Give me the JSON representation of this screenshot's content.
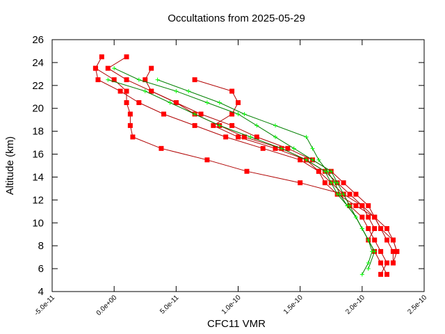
{
  "chart_data": {
    "type": "line",
    "title": "Occultations from 2025-05-29",
    "xlabel": "CFC11 VMR",
    "ylabel": "Altitude (km)",
    "xlim": [
      -5e-11,
      2.5e-10
    ],
    "ylim": [
      4,
      26
    ],
    "x_ticks": [
      "-5.0e-11",
      "0.0e+00",
      "5.0e-11",
      "1.0e-10",
      "1.5e-10",
      "2.0e-10",
      "2.5e-10"
    ],
    "y_ticks": [
      "4",
      "6",
      "8",
      "10",
      "12",
      "14",
      "16",
      "18",
      "20",
      "22",
      "24",
      "26"
    ],
    "grid": false,
    "legend": "none",
    "series": [
      {
        "color": "#ff0000",
        "line_color": "#b00000",
        "marker": "square",
        "values": [
          [
            -1e-11,
            24.5
          ],
          [
            -1.5e-11,
            23.5
          ],
          [
            -1.3e-11,
            22.5
          ],
          [
            5e-12,
            21.5
          ],
          [
            2e-11,
            20.5
          ],
          [
            4e-11,
            19.5
          ],
          [
            6.5e-11,
            18.5
          ],
          [
            9e-11,
            17.5
          ],
          [
            1.2e-10,
            16.5
          ],
          [
            1.5e-10,
            15.5
          ],
          [
            1.65e-10,
            14.5
          ],
          [
            1.75e-10,
            13.5
          ],
          [
            1.85e-10,
            12.5
          ],
          [
            1.9e-10,
            11.5
          ],
          [
            2e-10,
            10.5
          ],
          [
            2.05e-10,
            9.5
          ],
          [
            2.1e-10,
            8.5
          ],
          [
            2.15e-10,
            7.5
          ],
          [
            2.2e-10,
            6.5
          ],
          [
            2.15e-10,
            5.5
          ]
        ]
      },
      {
        "color": "#ff0000",
        "line_color": "#b00000",
        "marker": "square",
        "values": [
          [
            1e-11,
            24.5
          ],
          [
            -5e-12,
            23.5
          ],
          [
            1e-11,
            22.5
          ],
          [
            3e-11,
            21.5
          ],
          [
            5e-11,
            20.5
          ],
          [
            7e-11,
            19.5
          ],
          [
            9.5e-11,
            18.5
          ],
          [
            1.15e-10,
            17.5
          ],
          [
            1.4e-10,
            16.5
          ],
          [
            1.6e-10,
            15.5
          ],
          [
            1.75e-10,
            14.5
          ],
          [
            1.85e-10,
            13.5
          ],
          [
            1.95e-10,
            12.5
          ],
          [
            2.05e-10,
            11.5
          ],
          [
            2.1e-10,
            10.5
          ],
          [
            2.15e-10,
            9.5
          ],
          [
            2.2e-10,
            8.5
          ],
          [
            2.25e-10,
            7.5
          ],
          [
            2.25e-10,
            6.5
          ]
        ]
      },
      {
        "color": "#ff0000",
        "line_color": "#b00000",
        "marker": "square",
        "values": [
          [
            6.5e-11,
            22.5
          ],
          [
            9.5e-11,
            21.5
          ],
          [
            1e-10,
            20.5
          ],
          [
            9.5e-11,
            19.5
          ],
          [
            8e-11,
            18.5
          ],
          [
            1e-10,
            17.5
          ],
          [
            1.3e-10,
            16.5
          ],
          [
            1.55e-10,
            15.5
          ],
          [
            1.7e-10,
            14.5
          ],
          [
            1.8e-10,
            13.5
          ],
          [
            1.9e-10,
            12.5
          ],
          [
            2e-10,
            11.5
          ],
          [
            2.05e-10,
            10.5
          ],
          [
            2.1e-10,
            9.5
          ],
          [
            2.05e-10,
            8.5
          ],
          [
            2.1e-10,
            7.5
          ],
          [
            2.15e-10,
            6.5
          ],
          [
            2.2e-10,
            5.5
          ]
        ]
      },
      {
        "color": "#ff0000",
        "line_color": "#b00000",
        "marker": "square",
        "values": [
          [
            -1.5e-11,
            23.5
          ],
          [
            0,
            22.5
          ],
          [
            1e-11,
            21.5
          ],
          [
            1e-11,
            20.5
          ],
          [
            1.3e-11,
            19.5
          ],
          [
            1.3e-11,
            18.5
          ],
          [
            1.5e-11,
            17.5
          ],
          [
            3.8e-11,
            16.5
          ],
          [
            7.5e-11,
            15.5
          ],
          [
            1.07e-10,
            14.5
          ],
          [
            1.5e-10,
            13.5
          ],
          [
            1.85e-10,
            12.5
          ],
          [
            2e-10,
            11.5
          ],
          [
            2.1e-10,
            10.5
          ],
          [
            2.2e-10,
            9.5
          ],
          [
            2.25e-10,
            8.5
          ],
          [
            2.28e-10,
            7.5
          ],
          [
            2.25e-10,
            6.5
          ]
        ]
      },
      {
        "color": "#ff0000",
        "line_color": "#b00000",
        "marker": "square",
        "values": [
          [
            3e-11,
            23.5
          ],
          [
            2.5e-11,
            22.5
          ],
          [
            3e-11,
            21.5
          ],
          [
            5e-11,
            20.5
          ],
          [
            6.5e-11,
            19.5
          ],
          [
            8.5e-11,
            18.5
          ],
          [
            1.05e-10,
            17.5
          ],
          [
            1.35e-10,
            16.5
          ],
          [
            1.55e-10,
            15.5
          ],
          [
            1.65e-10,
            14.5
          ],
          [
            1.7e-10,
            13.5
          ],
          [
            1.8e-10,
            12.5
          ],
          [
            1.95e-10,
            11.5
          ],
          [
            2.1e-10,
            10.5
          ],
          [
            2.15e-10,
            9.5
          ],
          [
            2.25e-10,
            8.5
          ],
          [
            2.28e-10,
            7.5
          ]
        ]
      },
      {
        "color": "#00ff00",
        "line_color": "#008000",
        "marker": "plus",
        "values": [
          [
            0,
            23.5
          ],
          [
            2e-11,
            22.5
          ],
          [
            5e-11,
            21.5
          ],
          [
            7.5e-11,
            20.5
          ],
          [
            1e-10,
            19.5
          ],
          [
            1.15e-10,
            18.5
          ],
          [
            1.3e-10,
            17.5
          ],
          [
            1.45e-10,
            16.5
          ],
          [
            1.6e-10,
            15.5
          ],
          [
            1.75e-10,
            14.5
          ],
          [
            1.8e-10,
            13.5
          ],
          [
            1.85e-10,
            12.5
          ],
          [
            1.9e-10,
            11.5
          ],
          [
            1.95e-10,
            10.5
          ],
          [
            2e-10,
            9.5
          ],
          [
            2.05e-10,
            8.5
          ],
          [
            2.08e-10,
            7.5
          ],
          [
            2.05e-10,
            6.5
          ],
          [
            2e-10,
            5.5
          ]
        ]
      },
      {
        "color": "#00ff00",
        "line_color": "#008000",
        "marker": "plus",
        "values": [
          [
            -5e-12,
            22.5
          ],
          [
            2.5e-11,
            21.5
          ],
          [
            4.5e-11,
            20.5
          ],
          [
            6.5e-11,
            19.5
          ],
          [
            8.5e-11,
            18.5
          ],
          [
            1.1e-10,
            17.5
          ],
          [
            1.35e-10,
            16.5
          ],
          [
            1.55e-10,
            15.5
          ],
          [
            1.7e-10,
            14.5
          ],
          [
            1.75e-10,
            13.5
          ],
          [
            1.8e-10,
            12.5
          ],
          [
            1.88e-10,
            11.5
          ],
          [
            1.95e-10,
            10.5
          ],
          [
            2e-10,
            9.5
          ],
          [
            2.05e-10,
            8.5
          ],
          [
            2.1e-10,
            7.5
          ]
        ]
      },
      {
        "color": "#00ff00",
        "line_color": "#008000",
        "marker": "plus",
        "values": [
          [
            3.5e-11,
            22.5
          ],
          [
            6e-11,
            21.5
          ],
          [
            8.5e-11,
            20.5
          ],
          [
            1.05e-10,
            19.5
          ],
          [
            1.3e-10,
            18.5
          ],
          [
            1.55e-10,
            17.5
          ],
          [
            1.6e-10,
            16.5
          ],
          [
            1.65e-10,
            15.5
          ],
          [
            1.72e-10,
            14.5
          ],
          [
            1.78e-10,
            13.5
          ],
          [
            1.82e-10,
            12.5
          ],
          [
            1.88e-10,
            11.5
          ],
          [
            1.95e-10,
            10.5
          ],
          [
            2e-10,
            9.5
          ],
          [
            2.05e-10,
            8.5
          ],
          [
            2.1e-10,
            7.5
          ],
          [
            2.05e-10,
            6.0
          ]
        ]
      }
    ]
  }
}
